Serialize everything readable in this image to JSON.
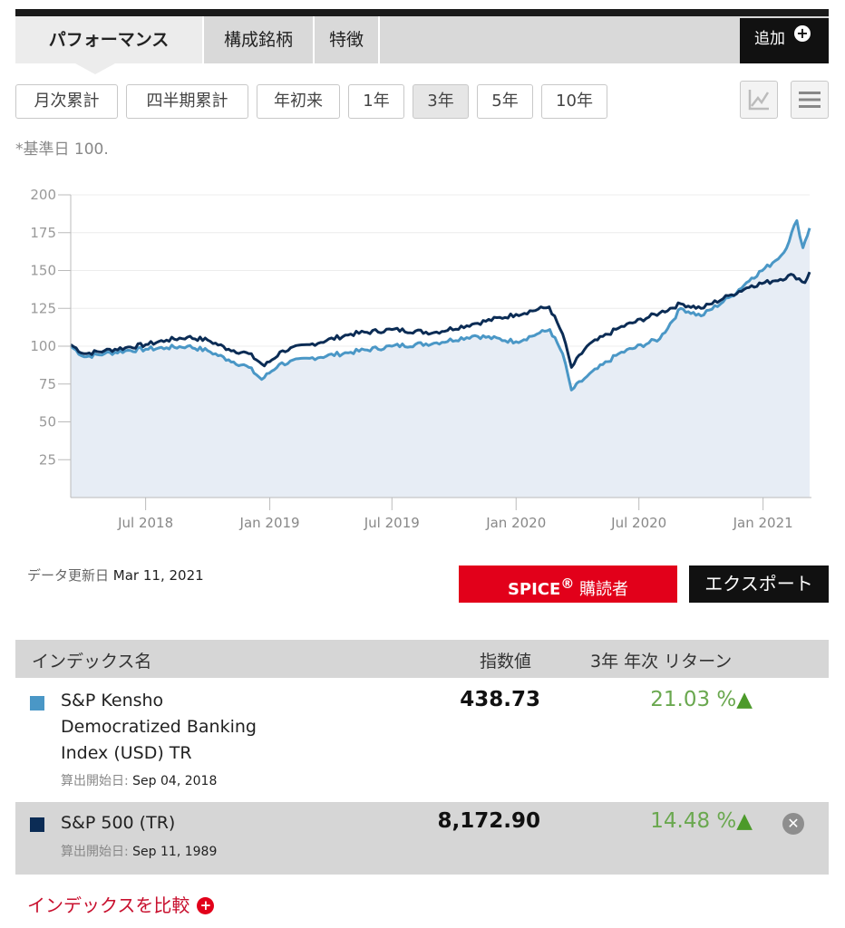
{
  "tabs": {
    "performance": "パフォーマンス",
    "constituents": "構成銘柄",
    "characteristics": "特徴"
  },
  "add_label": "追加",
  "periods": [
    "月次累計",
    "四半期累計",
    "年初来",
    "1年",
    "3年",
    "5年",
    "10年"
  ],
  "selected_period": "3年",
  "base_note": "*基準日 100.",
  "chart_data": {
    "type": "area",
    "ylim": [
      0,
      200
    ],
    "yticks": [
      25,
      50,
      75,
      100,
      125,
      150,
      175,
      200
    ],
    "x_ticks": [
      "Jul 2018",
      "Jan 2019",
      "Jul 2019",
      "Jan 2020",
      "Jul 2020",
      "Jan 2021"
    ],
    "x_range": [
      "Mar 2018",
      "Mar 2021"
    ],
    "series": [
      {
        "name": "S&P Kensho Democratized Banking Index (USD) TR",
        "color": "#4a97c6",
        "points": [
          [
            "2018-03-12",
            100
          ],
          [
            "2018-04-01",
            93
          ],
          [
            "2018-05-01",
            95
          ],
          [
            "2018-06-01",
            97
          ],
          [
            "2018-07-01",
            98
          ],
          [
            "2018-08-01",
            99
          ],
          [
            "2018-09-01",
            100
          ],
          [
            "2018-10-01",
            97
          ],
          [
            "2018-11-01",
            91
          ],
          [
            "2018-12-01",
            86
          ],
          [
            "2018-12-20",
            78
          ],
          [
            "2019-01-15",
            88
          ],
          [
            "2019-03-01",
            92
          ],
          [
            "2019-05-01",
            96
          ],
          [
            "2019-07-01",
            100
          ],
          [
            "2019-09-01",
            102
          ],
          [
            "2019-11-01",
            107
          ],
          [
            "2020-01-01",
            103
          ],
          [
            "2020-02-01",
            108
          ],
          [
            "2020-02-20",
            111
          ],
          [
            "2020-03-10",
            95
          ],
          [
            "2020-03-23",
            71
          ],
          [
            "2020-04-15",
            80
          ],
          [
            "2020-06-01",
            95
          ],
          [
            "2020-08-01",
            105
          ],
          [
            "2020-09-01",
            125
          ],
          [
            "2020-10-01",
            120
          ],
          [
            "2020-11-15",
            133
          ],
          [
            "2020-12-15",
            145
          ],
          [
            "2021-01-15",
            155
          ],
          [
            "2021-02-01",
            162
          ],
          [
            "2021-02-20",
            183
          ],
          [
            "2021-03-01",
            165
          ],
          [
            "2021-03-11",
            178
          ]
        ]
      },
      {
        "name": "S&P 500 (TR)",
        "color": "#0b2c55",
        "points": [
          [
            "2018-03-12",
            101
          ],
          [
            "2018-04-01",
            95
          ],
          [
            "2018-05-01",
            97
          ],
          [
            "2018-06-01",
            99
          ],
          [
            "2018-07-01",
            101
          ],
          [
            "2018-08-01",
            104
          ],
          [
            "2018-09-01",
            106
          ],
          [
            "2018-10-01",
            104
          ],
          [
            "2018-11-01",
            98
          ],
          [
            "2018-12-01",
            95
          ],
          [
            "2018-12-24",
            87
          ],
          [
            "2019-01-20",
            97
          ],
          [
            "2019-03-01",
            101
          ],
          [
            "2019-05-01",
            108
          ],
          [
            "2019-07-01",
            111
          ],
          [
            "2019-09-01",
            109
          ],
          [
            "2019-11-01",
            115
          ],
          [
            "2020-01-01",
            121
          ],
          [
            "2020-02-19",
            126
          ],
          [
            "2020-03-10",
            108
          ],
          [
            "2020-03-23",
            86
          ],
          [
            "2020-04-15",
            100
          ],
          [
            "2020-06-01",
            112
          ],
          [
            "2020-08-01",
            122
          ],
          [
            "2020-09-01",
            128
          ],
          [
            "2020-10-01",
            125
          ],
          [
            "2020-11-15",
            134
          ],
          [
            "2020-12-15",
            140
          ],
          [
            "2021-01-15",
            143
          ],
          [
            "2021-02-15",
            147
          ],
          [
            "2021-03-04",
            142
          ],
          [
            "2021-03-11",
            149
          ]
        ]
      }
    ]
  },
  "updated_label": "データ更新日",
  "updated_date": "Mar 11, 2021",
  "spice_label": "SPICE",
  "spice_sup": "®",
  "spice_suffix": " 購読者",
  "export_label": "エクスポート",
  "table": {
    "col_name": "インデックス名",
    "col_value": "指数値",
    "col_return": "3年 年次 リターン",
    "rows": [
      {
        "color": "#4a97c6",
        "name_line1": "S&P Kensho",
        "name_line2": "Democratized Banking",
        "name_line3": "Index (USD) TR",
        "start_label": "算出開始日:",
        "start_date": "Sep 04, 2018",
        "value": "438.73",
        "return": "21.03 %"
      },
      {
        "color": "#0b2c55",
        "name_line1": "S&P 500 (TR)",
        "start_label": "算出開始日:",
        "start_date": "Sep 11, 1989",
        "value": "8,172.90",
        "return": "14.48 %"
      }
    ]
  },
  "compare_label": "インデックスを比較"
}
